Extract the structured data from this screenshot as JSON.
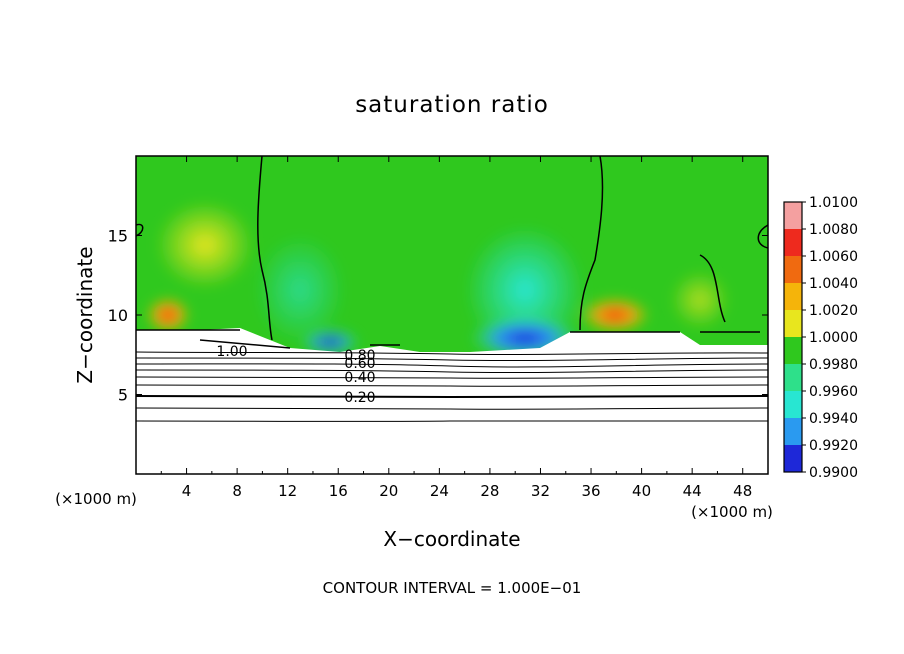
{
  "chart_data": {
    "type": "heatmap",
    "title": "saturation ratio",
    "xlabel": "X−coordinate",
    "ylabel": "Z−coordinate",
    "x_unit_left": "(×1000 m)",
    "x_unit_right": "(×1000 m)",
    "xlim": [
      0,
      50
    ],
    "ylim": [
      0,
      20
    ],
    "x_ticks": [
      4,
      8,
      12,
      16,
      20,
      24,
      28,
      32,
      36,
      40,
      44,
      48
    ],
    "y_ticks": [
      5,
      10,
      15
    ],
    "colorbar": {
      "levels": [
        "1.0100",
        "1.0080",
        "1.0060",
        "1.0040",
        "1.0020",
        "1.0000",
        "0.9980",
        "0.9960",
        "0.9940",
        "0.9920",
        "0.9900"
      ],
      "colors": [
        "#f4a0a0",
        "#ee2a1e",
        "#f06a10",
        "#f5b40a",
        "#e8e61e",
        "#2fc81e",
        "#2ee08a",
        "#28e6d2",
        "#2a9af0",
        "#1e28d8",
        "#5a1aa0"
      ]
    },
    "contour_labels": [
      "1.00",
      "0.80",
      "0.60",
      "0.40",
      "0.20"
    ],
    "contour_interval_text": "CONTOUR INTERVAL = 1.000E−01"
  }
}
